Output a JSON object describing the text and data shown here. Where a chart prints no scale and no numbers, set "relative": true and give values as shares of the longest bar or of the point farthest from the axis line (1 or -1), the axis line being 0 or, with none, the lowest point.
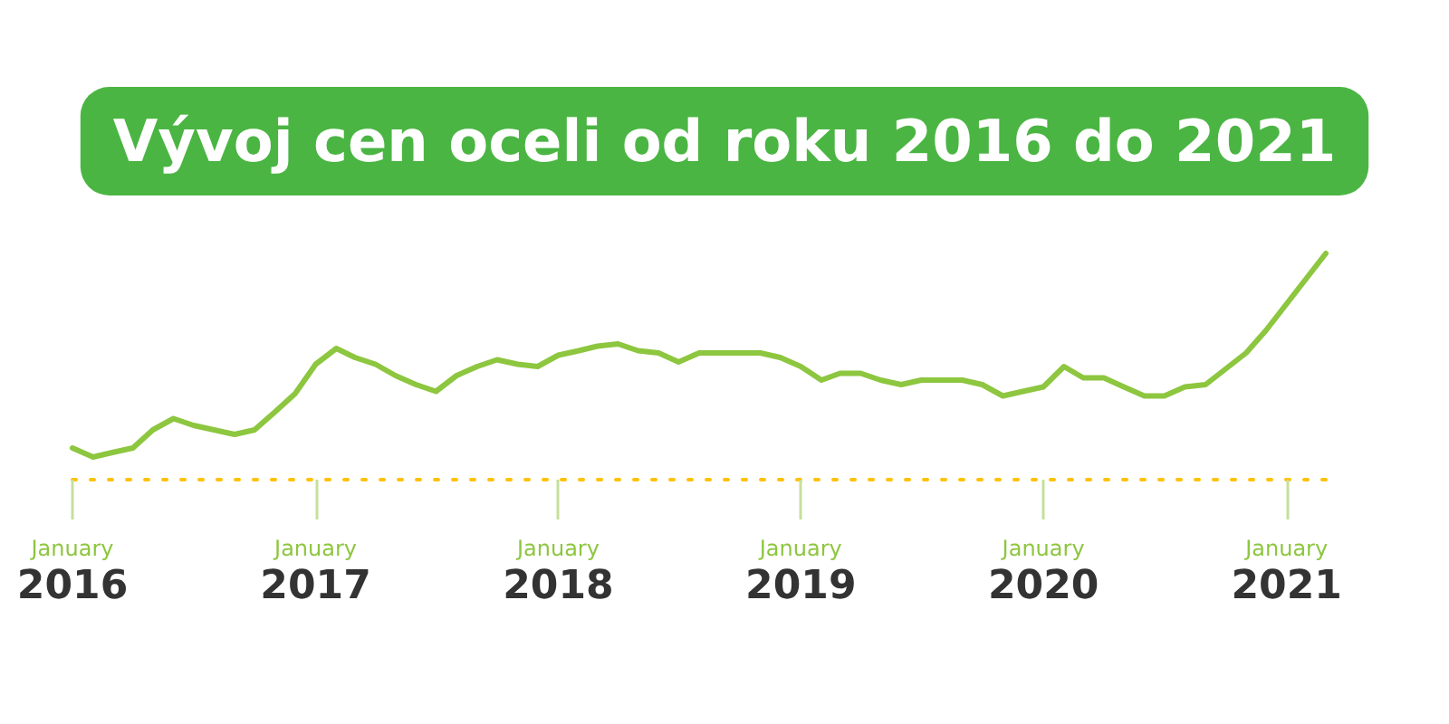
{
  "chart_data": {
    "type": "line",
    "title": "Vývoj cen oceli od roku 2016 do 2021",
    "relative": true,
    "color": "#8dc63f",
    "marker": "none",
    "grid": false,
    "x": [
      "2016-01",
      "2016-02",
      "2016-03",
      "2016-04",
      "2016-05",
      "2016-06",
      "2016-07",
      "2016-08",
      "2016-09",
      "2016-10",
      "2016-11",
      "2016-12",
      "2017-01",
      "2017-02",
      "2017-03",
      "2017-04",
      "2017-05",
      "2017-06",
      "2017-07",
      "2017-08",
      "2017-09",
      "2017-10",
      "2017-11",
      "2017-12",
      "2018-01",
      "2018-02",
      "2018-03",
      "2018-04",
      "2018-05",
      "2018-06",
      "2018-07",
      "2018-08",
      "2018-09",
      "2018-10",
      "2018-11",
      "2018-12",
      "2019-01",
      "2019-02",
      "2019-03",
      "2019-04",
      "2019-05",
      "2019-06",
      "2019-07",
      "2019-08",
      "2019-09",
      "2019-10",
      "2019-11",
      "2019-12",
      "2020-01",
      "2020-02",
      "2020-03",
      "2020-04",
      "2020-05",
      "2020-06",
      "2020-07",
      "2020-08",
      "2020-09",
      "2020-11",
      "2020-12",
      "2021-03"
    ],
    "values": [
      0.14,
      0.1,
      0.12,
      0.14,
      0.22,
      0.27,
      0.24,
      0.22,
      0.2,
      0.22,
      0.3,
      0.38,
      0.51,
      0.58,
      0.54,
      0.51,
      0.46,
      0.42,
      0.39,
      0.46,
      0.5,
      0.53,
      0.51,
      0.5,
      0.55,
      0.57,
      0.59,
      0.6,
      0.57,
      0.56,
      0.52,
      0.56,
      0.56,
      0.56,
      0.56,
      0.54,
      0.5,
      0.44,
      0.47,
      0.47,
      0.44,
      0.42,
      0.44,
      0.44,
      0.44,
      0.42,
      0.37,
      0.39,
      0.41,
      0.5,
      0.45,
      0.45,
      0.41,
      0.37,
      0.37,
      0.41,
      0.42,
      0.56,
      0.66,
      1
    ],
    "xlim": [
      "2016-01",
      "2021-03"
    ],
    "xticks": [
      {
        "value": "2016-01",
        "label": "January\n2016"
      },
      {
        "value": "2017-01",
        "label": "January\n2017"
      },
      {
        "value": "2018-01",
        "label": "January\n2018"
      },
      {
        "value": "2019-01",
        "label": "January\n2019"
      },
      {
        "value": "2020-01",
        "label": "January\n2020"
      },
      {
        "value": "2021-01",
        "label": "January\n2021"
      }
    ]
  }
}
